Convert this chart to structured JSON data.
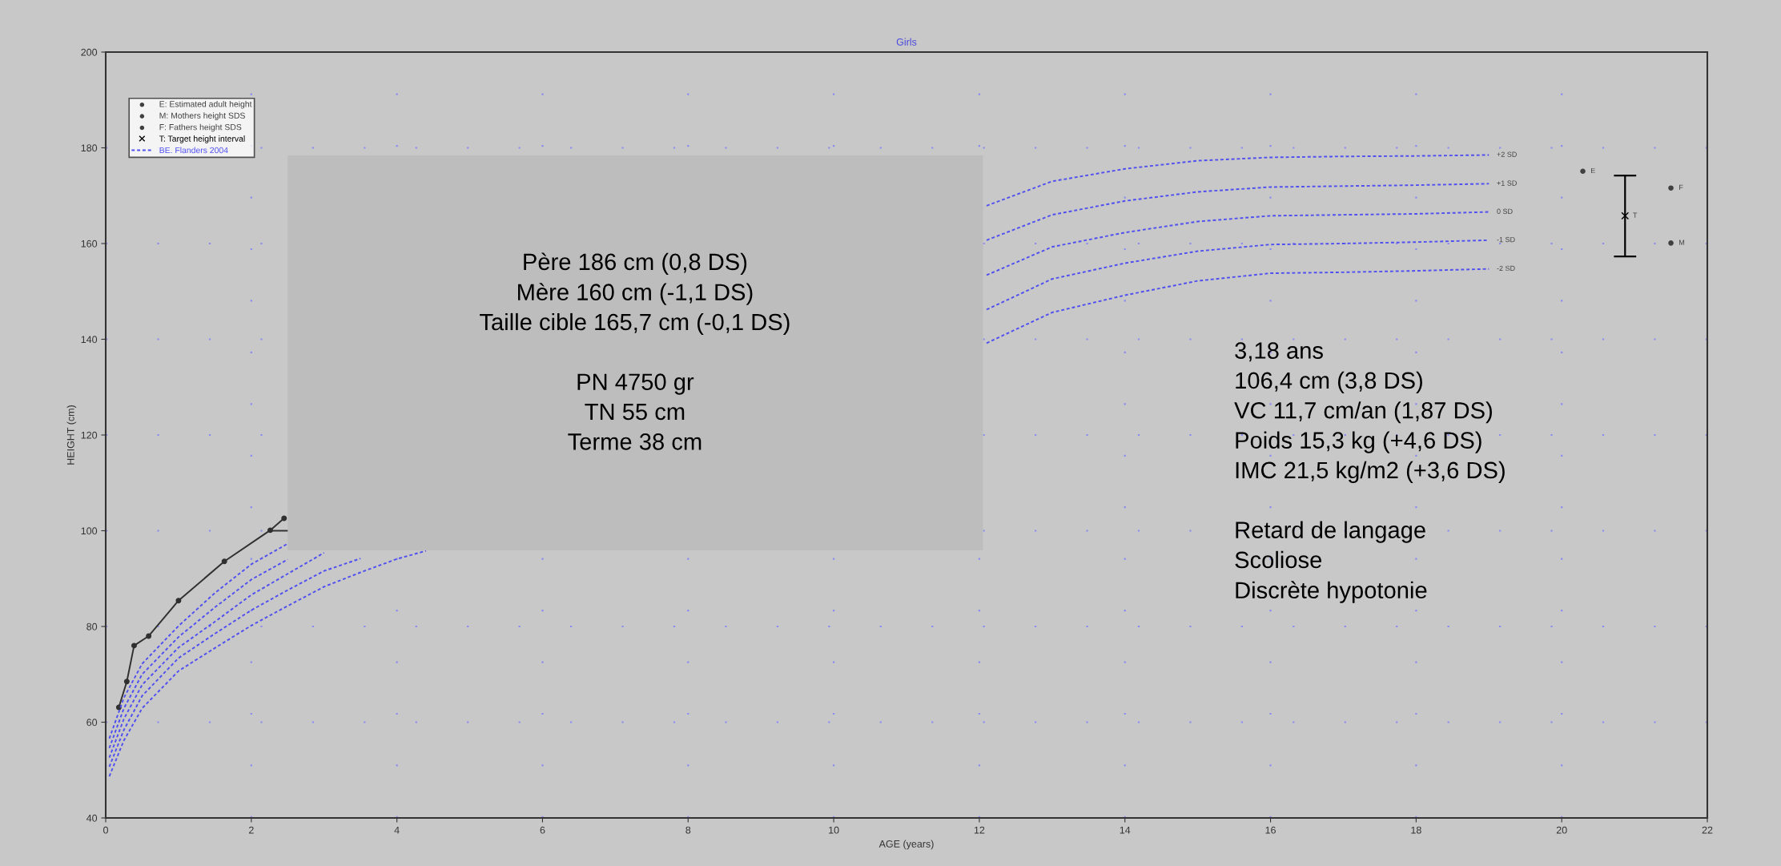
{
  "chart_data": {
    "type": "line",
    "title": "Girls",
    "xlabel": "AGE (years)",
    "ylabel": "HEIGHT (cm)",
    "xlim": [
      0,
      22
    ],
    "xticks": [
      0,
      2,
      4,
      6,
      8,
      10,
      12,
      14,
      16,
      18,
      20,
      22
    ],
    "ylim": [
      40,
      200
    ],
    "yticks": [
      40,
      60,
      80,
      100,
      120,
      140,
      160,
      180,
      200
    ],
    "grid": true,
    "legend": "top left",
    "series": [
      {
        "color": "#303030",
        "marker": "circle",
        "x": [
          0.18,
          0.29,
          0.39,
          0.59,
          1.0,
          1.63,
          2.26,
          2.45
        ],
        "values": [
          63.1,
          68.5,
          76.0,
          78.0,
          85.4,
          93.6,
          100.1,
          102.6
        ]
      },
      {
        "color": "#303030",
        "x": [
          2.26,
          2.5
        ],
        "values": [
          100,
          100
        ]
      },
      {
        "type": "scatter",
        "name": "E: Estimated adult height",
        "color": "#404040",
        "marker": "circle",
        "x": [
          20.29
        ],
        "values": [
          175.1
        ]
      },
      {
        "type": "scatter",
        "name": "M: Mothers height SDS",
        "color": "#404040",
        "marker": "circle",
        "x": [
          21.5
        ],
        "values": [
          160.1
        ]
      },
      {
        "type": "scatter",
        "name": "F: Fathers height SDS",
        "color": "#404040",
        "marker": "circle",
        "x": [
          21.5
        ],
        "values": [
          171.6
        ]
      },
      {
        "type": "scatter",
        "name": "T: Target height interval",
        "color": "#000000",
        "marker": "cross",
        "x": [
          20.87
        ],
        "values": [
          165.8
        ],
        "errors": [
          [
            157.3,
            174.2
          ]
        ]
      },
      {
        "name": "BE. Flanders 2004",
        "color": "#5050f0",
        "line_style": "dotted",
        "x": [
          0.05,
          0.25,
          0.5,
          1,
          1.5,
          2,
          2.5,
          3,
          3.5,
          4,
          4.4,
          8,
          12.1,
          13,
          14,
          15,
          16,
          17,
          18,
          19
        ],
        "values": [
          56.6,
          65.1,
          72.2,
          80.1,
          87.0,
          93.0,
          97.3,
          null,
          null,
          null,
          null,
          null,
          167.9,
          173.0,
          175.6,
          177.3,
          178.0,
          178.2,
          178.3,
          178.5
        ]
      },
      {
        "color": "#5050f0",
        "line_style": "dotted",
        "x": [
          0.05,
          0.25,
          0.5,
          1,
          1.5,
          2,
          2.5,
          3,
          3.5,
          4,
          4.4,
          8,
          12.1,
          13,
          14,
          15,
          16,
          17,
          18,
          19
        ],
        "values": [
          54.6,
          62.9,
          70.0,
          77.8,
          84.0,
          89.8,
          94.0,
          null,
          null,
          null,
          null,
          null,
          160.7,
          166.0,
          168.9,
          170.8,
          171.8,
          172.0,
          172.2,
          172.5
        ]
      },
      {
        "color": "#5050f0",
        "line_style": "dotted",
        "x": [
          0.05,
          0.25,
          0.5,
          1,
          1.5,
          2,
          2.5,
          3,
          3.5,
          4,
          4.4,
          8,
          12.1,
          13,
          14,
          15,
          16,
          17,
          18,
          19
        ],
        "values": [
          52.6,
          60.7,
          67.8,
          75.6,
          81.0,
          86.6,
          91.0,
          95.4,
          null,
          null,
          null,
          null,
          153.4,
          159.3,
          162.3,
          164.6,
          165.8,
          166.0,
          166.2,
          166.6
        ]
      },
      {
        "color": "#5050f0",
        "line_style": "dotted",
        "x": [
          0.05,
          0.25,
          0.5,
          1,
          1.5,
          2,
          2.5,
          3,
          3.5,
          4,
          4.4,
          8,
          12.1,
          13,
          14,
          15,
          16,
          17,
          18,
          19
        ],
        "values": [
          50.7,
          58.4,
          65.5,
          73.4,
          78.5,
          83.4,
          87.6,
          91.6,
          94.2,
          null,
          null,
          null,
          146.2,
          152.6,
          155.9,
          158.4,
          159.8,
          160.0,
          160.3,
          160.7
        ]
      },
      {
        "color": "#5050f0",
        "line_style": "dotted",
        "x": [
          0.05,
          0.25,
          0.5,
          1,
          1.5,
          2,
          2.5,
          3,
          3.5,
          4,
          4.4,
          8,
          12.1,
          13,
          14,
          15,
          16,
          17,
          18,
          19
        ],
        "values": [
          48.7,
          56.2,
          62.9,
          70.7,
          75.5,
          80.2,
          84.3,
          88.3,
          91.3,
          94.1,
          95.8,
          null,
          139.2,
          145.6,
          149.2,
          152.2,
          153.8,
          154.0,
          154.3,
          154.7
        ]
      }
    ],
    "annotations": [
      "Père 186 cm (0,8 DS)\nMère 160 cm (-1,1 DS)\nTaille cible 165,7 cm (-0,1 DS)\n\nPN 4750 gr\nTN 55 cm\nTerme 38 cm",
      "3,18 ans\n106,4 cm (3,8 DS)\nVC 11,7 cm/an (1,87 DS)\nPoids 15,3 kg (+4,6 DS)\nIMC 21,5 kg/m2 (+3,6 DS)\n\nRetard de langage\nScoliose\nDiscrète hypotonie",
      {
        "text": "+2 SD",
        "x": 19,
        "y": 178.5
      },
      {
        "text": "+1 SD",
        "x": 19,
        "y": 172.5
      },
      {
        "text": "0 SD",
        "x": 19,
        "y": 166.6
      },
      {
        "text": "-1 SD",
        "x": 19,
        "y": 160.7
      },
      {
        "text": "-2 SD",
        "x": 19,
        "y": 154.7
      },
      {
        "text": "E",
        "x": 20.29,
        "y": 175.1
      },
      {
        "text": "F",
        "x": 21.5,
        "y": 171.6
      },
      {
        "text": "M",
        "x": 21.5,
        "y": 160.1
      },
      {
        "text": "T",
        "x": 20.87,
        "y": 165.8
      }
    ]
  }
}
